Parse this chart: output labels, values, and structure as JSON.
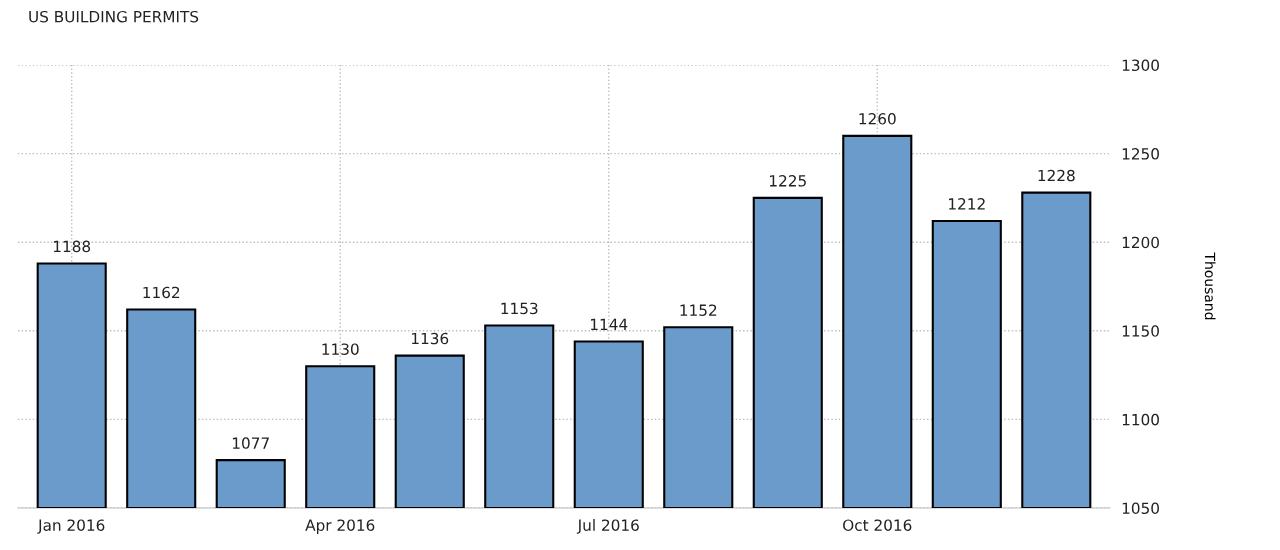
{
  "chart_data": {
    "type": "bar",
    "title": "US BUILDING PERMITS",
    "ylabel": "Thousand",
    "categories": [
      "Jan 2016",
      null,
      null,
      "Apr 2016",
      null,
      null,
      "Jul 2016",
      null,
      null,
      "Oct 2016",
      null,
      null
    ],
    "values": [
      1188,
      1162,
      1077,
      1130,
      1136,
      1153,
      1144,
      1152,
      1225,
      1260,
      1212,
      1228
    ],
    "color": "#6b9bcb",
    "ylim": [
      1050,
      1300
    ],
    "yticks": [
      1050,
      1100,
      1150,
      1200,
      1250,
      1300
    ],
    "grid": true,
    "data_labels": true,
    "legend": false
  }
}
